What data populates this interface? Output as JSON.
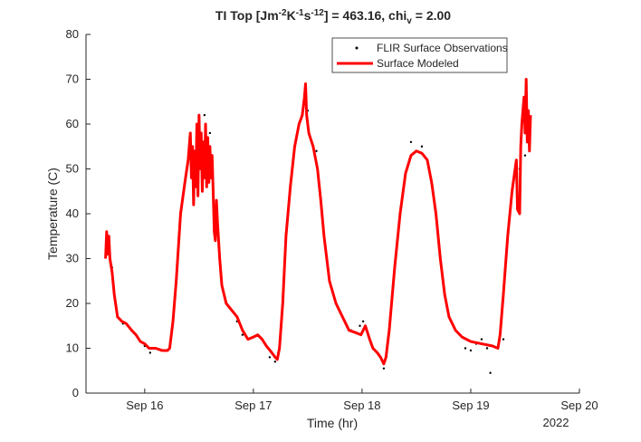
{
  "chart_data": {
    "type": "line",
    "title_parts": [
      {
        "text": "TI Top [Jm",
        "shift": "base"
      },
      {
        "text": "-2",
        "shift": "sup"
      },
      {
        "text": "K",
        "shift": "base"
      },
      {
        "text": "-1",
        "shift": "sup"
      },
      {
        "text": "s",
        "shift": "base"
      },
      {
        "text": "-12",
        "shift": "sup"
      },
      {
        "text": "] = 463.16, chi",
        "shift": "base"
      },
      {
        "text": "v",
        "shift": "sub"
      },
      {
        "text": " = 2.00",
        "shift": "base"
      }
    ],
    "x_label": "Time (hr)",
    "y_label": "Temperature (C)",
    "x_secondary_label": "2022",
    "xlim": [
      15.46,
      20
    ],
    "ylim": [
      0,
      80
    ],
    "xticks": [
      {
        "value": 16,
        "label": "Sep 16"
      },
      {
        "value": 17,
        "label": "Sep 17"
      },
      {
        "value": 18,
        "label": "Sep 18"
      },
      {
        "value": 19,
        "label": "Sep 19"
      },
      {
        "value": 20,
        "label": "Sep 20"
      }
    ],
    "yticks": [
      0,
      10,
      20,
      30,
      40,
      50,
      60,
      70,
      80
    ],
    "grid": false,
    "legend": "northeast",
    "series": [
      {
        "name": "FLIR Surface Observations",
        "type": "scatter",
        "color": "#000000",
        "x": [
          15.7,
          15.8,
          15.9,
          16.0,
          16.05,
          16.15,
          16.45,
          16.55,
          16.6,
          16.85,
          16.9,
          17.15,
          17.2,
          17.5,
          17.58,
          17.9,
          17.98,
          18.01,
          18.2,
          18.45,
          18.55,
          18.95,
          19.0,
          19.05,
          19.1,
          19.15,
          19.18,
          19.3,
          19.45,
          19.5
        ],
        "values": [
          28,
          15.5,
          13.5,
          10.5,
          9,
          9.5,
          50,
          62,
          58,
          16,
          13,
          8,
          7,
          63,
          54,
          14,
          15,
          16,
          5.5,
          56,
          55,
          10,
          9.5,
          11,
          12,
          10,
          4.5,
          12,
          50,
          53
        ]
      },
      {
        "name": "Surface Modeled",
        "type": "line",
        "color": "#ff0000",
        "x": [
          15.64,
          15.65,
          15.66,
          15.67,
          15.68,
          15.7,
          15.72,
          15.75,
          15.79,
          15.83,
          15.88,
          15.92,
          15.96,
          16.0,
          16.04,
          16.1,
          16.16,
          16.21,
          16.23,
          16.26,
          16.29,
          16.33,
          16.37,
          16.4,
          16.42,
          16.43,
          16.44,
          16.45,
          16.46,
          16.47,
          16.48,
          16.49,
          16.5,
          16.51,
          16.52,
          16.53,
          16.54,
          16.55,
          16.56,
          16.57,
          16.58,
          16.59,
          16.6,
          16.61,
          16.62,
          16.63,
          16.64,
          16.65,
          16.66,
          16.67,
          16.69,
          16.71,
          16.75,
          16.8,
          16.85,
          16.9,
          16.95,
          17.0,
          17.04,
          17.08,
          17.12,
          17.17,
          17.2,
          17.22,
          17.24,
          17.27,
          17.3,
          17.34,
          17.38,
          17.42,
          17.45,
          17.47,
          17.48,
          17.49,
          17.51,
          17.55,
          17.59,
          17.62,
          17.65,
          17.7,
          17.76,
          17.82,
          17.88,
          17.94,
          17.99,
          18.03,
          18.07,
          18.1,
          18.14,
          18.17,
          18.2,
          18.22,
          18.25,
          18.3,
          18.35,
          18.4,
          18.45,
          18.5,
          18.55,
          18.6,
          18.64,
          18.68,
          18.72,
          18.76,
          18.8,
          18.86,
          18.92,
          19.0,
          19.1,
          19.2,
          19.25,
          19.27,
          19.3,
          19.34,
          19.38,
          19.42,
          19.43,
          19.45,
          19.46,
          19.47,
          19.49,
          19.5,
          19.51,
          19.52,
          19.53,
          19.54,
          19.55
        ],
        "values": [
          30,
          36,
          31,
          35,
          30,
          27,
          22,
          17,
          16,
          15.5,
          14,
          13,
          11.5,
          11,
          10,
          10,
          9.5,
          9.5,
          10,
          16,
          25,
          40,
          47,
          52,
          58,
          48,
          55,
          42,
          54,
          46,
          60,
          44,
          62,
          50,
          58,
          45,
          56,
          48,
          60,
          46,
          57,
          47,
          55,
          48,
          53,
          45,
          36,
          34,
          43,
          38,
          30,
          24,
          20,
          18.5,
          17,
          14,
          12,
          12.5,
          13,
          12,
          10.5,
          9,
          8,
          7.5,
          10,
          20,
          35,
          46,
          55,
          60,
          62,
          66,
          69,
          62,
          58,
          55,
          50,
          43,
          35,
          25,
          20,
          17,
          14,
          13.5,
          13,
          15,
          12,
          10,
          9,
          8,
          6.5,
          8,
          14,
          28,
          40,
          49,
          53,
          54,
          53.5,
          52,
          47,
          40,
          30,
          22,
          17,
          14,
          12.5,
          11.5,
          11,
          10.5,
          10,
          13,
          22,
          35,
          45,
          52,
          41,
          40,
          55,
          60,
          66,
          58,
          70,
          56,
          63,
          54,
          62
        ]
      }
    ]
  }
}
